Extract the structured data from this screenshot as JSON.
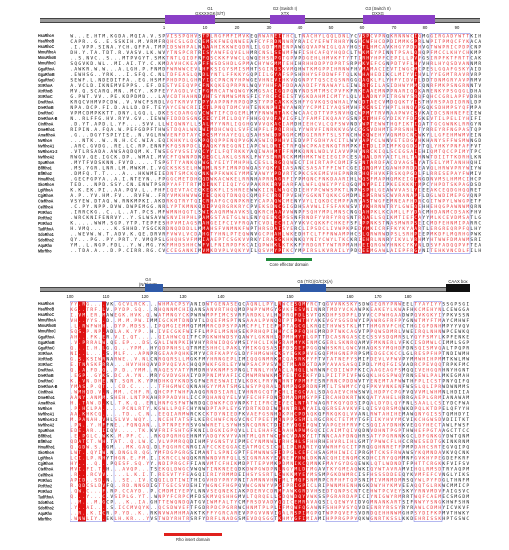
{
  "block1": {
    "features": [
      {
        "id": "g1",
        "label": "G1\nGXXXXGK(S/T)"
      },
      {
        "id": "g2",
        "label": "G2 (Switch I)\nXTX"
      },
      {
        "id": "g3",
        "label": "G3 (Switch II)\nDXXG"
      }
    ],
    "ticks": [
      "1",
      "10",
      "20",
      "30",
      "40",
      "50",
      "60",
      "70",
      "80",
      "90"
    ],
    "domain_label": "Core effector domain"
  },
  "block2": {
    "features": [
      {
        "id": "g4",
        "label": "G4\n(N/T)KXD"
      },
      {
        "id": "g5",
        "label": "G5 (T/G)(G/C)X(A)"
      },
      {
        "id": "caax",
        "label": "CAAX box"
      }
    ],
    "ticks": [
      "100",
      "110",
      "120",
      "130",
      "140",
      "150",
      "160",
      "170",
      "180"
    ],
    "domain_label": "Rho insert domain"
  },
  "sequence_names": [
    "HsaRhoA",
    "HsaRhoB",
    "HsaRhoC",
    "MmuRhoA",
    "MmuRhoB",
    "MmuRhoC",
    "GgaRhoA",
    "GgaRhoB",
    "GgaRhoC",
    "XtrRhoA",
    "XtrRhoB",
    "XtrRhoC",
    "DreRhoA",
    "DreRhoB",
    "DreRhoC",
    "DreRhoA-B",
    "CinRhoA",
    "DmeRho1",
    "AmeRhoA",
    "NvRhoA",
    "NvRhoA1",
    "NvRhoA1-2",
    "NvRhoA2",
    "SpuRhoA",
    "BflRho1",
    "BflRho2",
    "HmaRho1",
    "SkoRhoA",
    "LgiRhoA",
    "CgiRhoA",
    "CteRhoA",
    "CelRhoA",
    "PtrRho1",
    "PtrRho2",
    "PtrRho3",
    "TadRhoA",
    "SdoRho1",
    "SdoRho2",
    "AquRho",
    "MbrRho"
  ],
  "colors": {
    "identical_fill": "#dd1111",
    "similar_text": "#e8373b",
    "box_border": "#6b72e0",
    "feature_bar": "#8b3fc7",
    "g4_bar": "#2f5aa8",
    "g5_bar": "#2f5aa8",
    "caax_bar": "#111111",
    "core_domain": "#1f8a3b",
    "insert_domain": "#e0201c",
    "scale_line": "#9a9a9a"
  }
}
